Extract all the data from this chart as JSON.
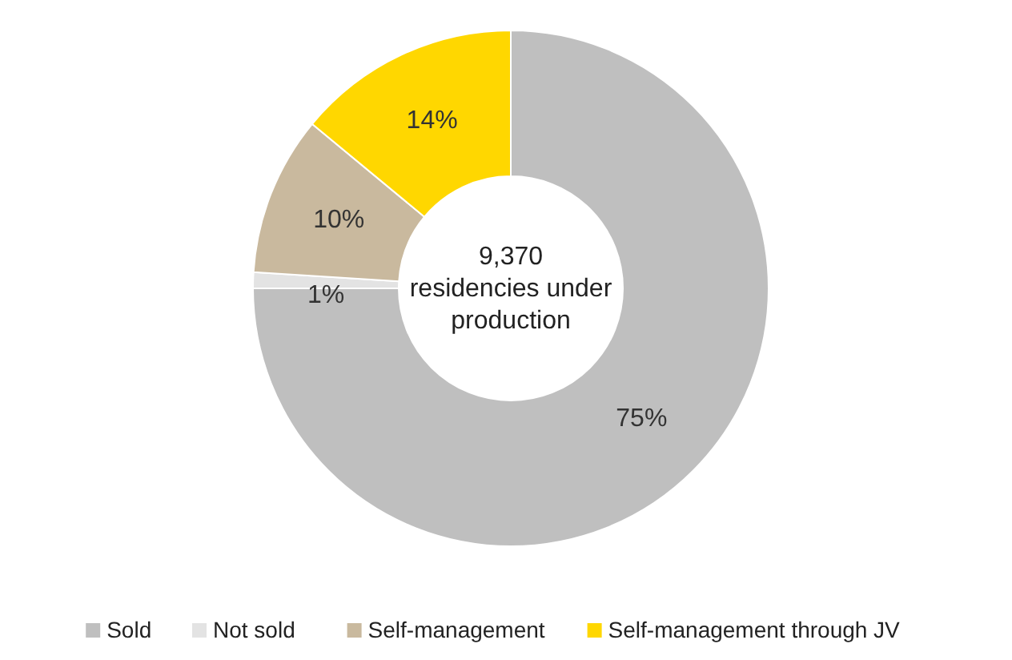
{
  "chart_data": {
    "type": "donut",
    "categories": [
      "Sold",
      "Not sold",
      "Self-management",
      "Self-management through JV"
    ],
    "values": [
      75,
      1,
      10,
      14
    ],
    "colors": [
      "#bfbfbf",
      "#e3e3e3",
      "#c9b99e",
      "#ffd700"
    ],
    "value_labels": [
      "75%",
      "1%",
      "10%",
      "14%"
    ],
    "legend": "bottom",
    "annotations": [
      "9,370\nresidencies under\nproduction"
    ]
  }
}
